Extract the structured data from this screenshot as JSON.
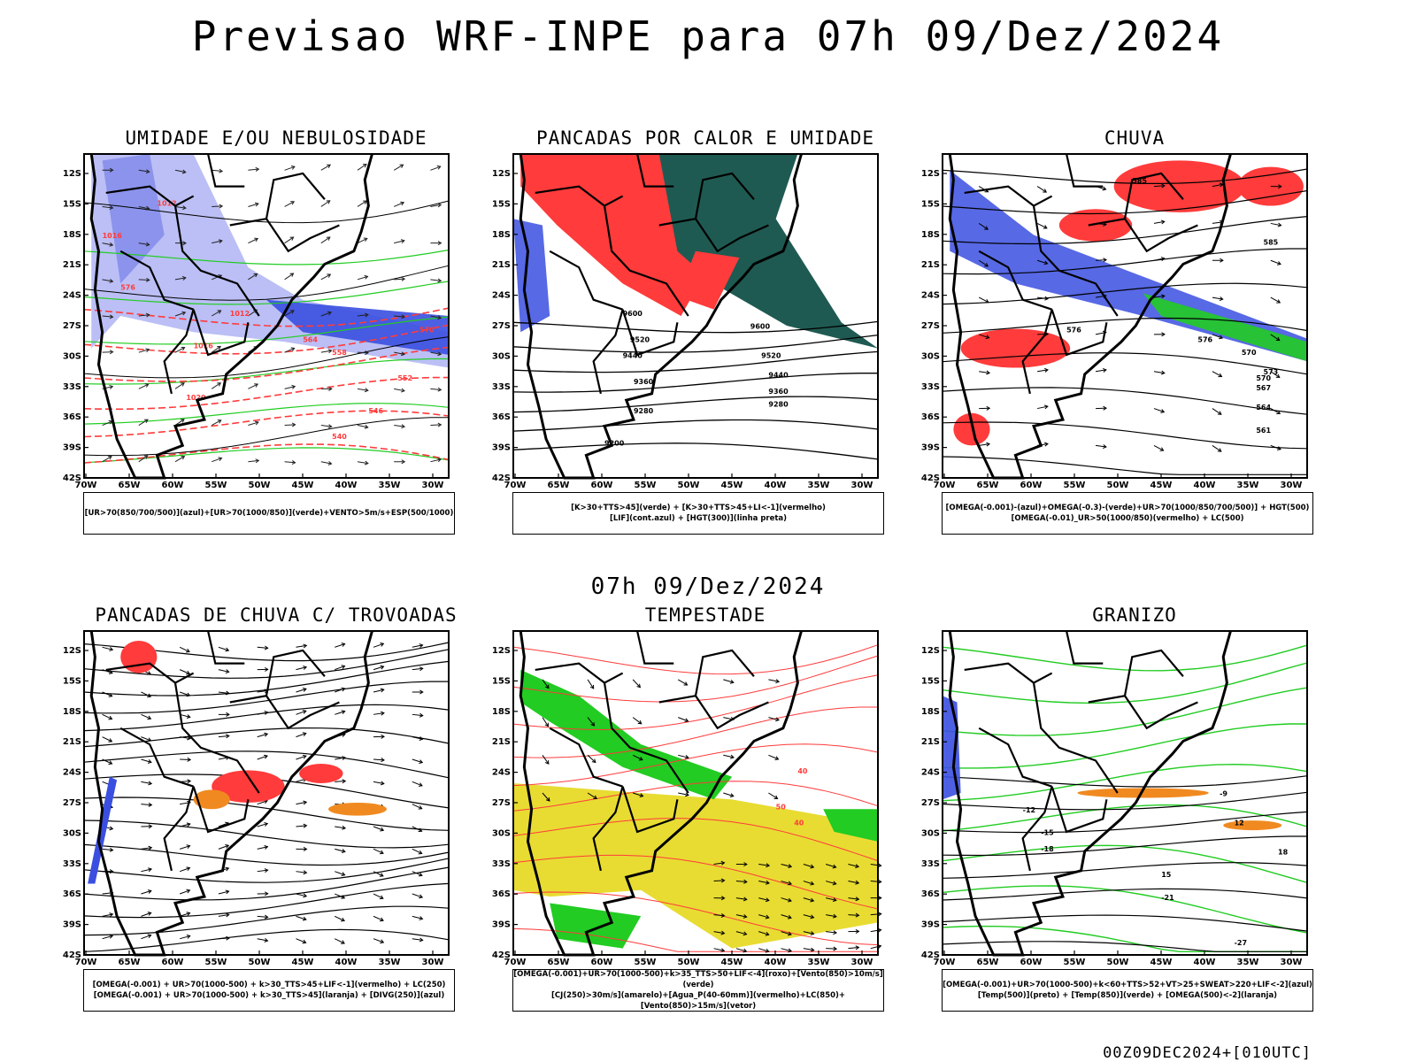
{
  "title": "Previsao WRF-INPE  para 07h 09/Dez/2024",
  "mid_title": "07h 09/Dez/2024",
  "footer": "00Z09DEC2024+[010UTC]",
  "axes": {
    "lat_labels": [
      "12S",
      "15S",
      "18S",
      "21S",
      "24S",
      "27S",
      "30S",
      "33S",
      "36S",
      "39S",
      "42S"
    ],
    "lon_labels": [
      "70W",
      "65W",
      "60W",
      "55W",
      "50W",
      "45W",
      "40W",
      "35W",
      "30W"
    ]
  },
  "colors": {
    "blue": "#3a4fe0",
    "green": "#22cc22",
    "red": "#ff3b3b",
    "darkteal": "#1f5a52",
    "yellow": "#e8dc32",
    "orange": "#f08a20"
  },
  "panels": [
    {
      "title": "UMIDADE E/OU NEBULOSIDADE",
      "caption": [
        "[UR>70(850/700/500)](azul)+[UR>70(1000/850)](verde)+VENTO>5m/s+ESP(500/1000)"
      ],
      "labels": [
        "1012",
        "1016",
        "1020",
        "576",
        "570",
        "564",
        "558",
        "552",
        "546",
        "540",
        "1012",
        "1016"
      ]
    },
    {
      "title": "PANCADAS POR CALOR E UMIDADE",
      "caption": [
        "[K>30+TTS>45](verde)  +  [K>30+TTS>45+LI<-1](vermelho)",
        "[LIF](cont.azul)  +  [HGT(300)](linha preta)"
      ],
      "labels": [
        "9600",
        "9520",
        "9440",
        "9360",
        "9280",
        "9200",
        "9600",
        "9520",
        "9440",
        "9360",
        "9280"
      ]
    },
    {
      "title": "CHUVA",
      "caption": [
        "[OMEGA(-0.001)-(azul)+OMEGA(-0.3)-(verde)+UR>70(1000/850/700/500)] + HGT(500)",
        "[OMEGA(-0.01)_UR>50(1000/850)(vermelho) + LC(500)"
      ],
      "labels": [
        "585",
        "576",
        "573",
        "570",
        "567",
        "564",
        "561",
        "585",
        "576",
        "570"
      ]
    },
    {
      "title": "PANCADAS DE CHUVA C/ TROVOADAS",
      "caption": [
        "[OMEGA(-0.001) + UR>70(1000-500) + k>30_TTS>45+LIF<-1](vermelho) + LC(250)",
        "[OMEGA(-0.001) + UR>70(1000-500) + k>30_TTS>45](laranja) + [DIVG(250)](azul)"
      ],
      "labels": []
    },
    {
      "title": "TEMPESTADE",
      "caption": [
        "[OMEGA(-0.001)+UR>70(1000-500)+k>35_TTS>50+LIF<-4](roxo)+[Vento(850)>10m/s](verde)",
        "[CJ(250)>30m/s](amarelo)+[Agua_P(40-60mm)](vermelho)+LC(850)+[Vento(850)>15m/s](vetor)"
      ],
      "labels": [
        "40",
        "50",
        "40"
      ]
    },
    {
      "title": "GRANIZO",
      "caption": [
        "[OMEGA(-0.001)+UR>70(1000-500)+k<60+TTS>52+VT>25+SWEAT>220+LIF<-2](azul)",
        "[Temp(500)](preto) + [Temp(850)](verde) + [OMEGA(500)<-2](laranja)"
      ],
      "labels": [
        "-9",
        "-12",
        "-15",
        "-18",
        "-21",
        "-27",
        "12",
        "15",
        "18"
      ]
    }
  ]
}
